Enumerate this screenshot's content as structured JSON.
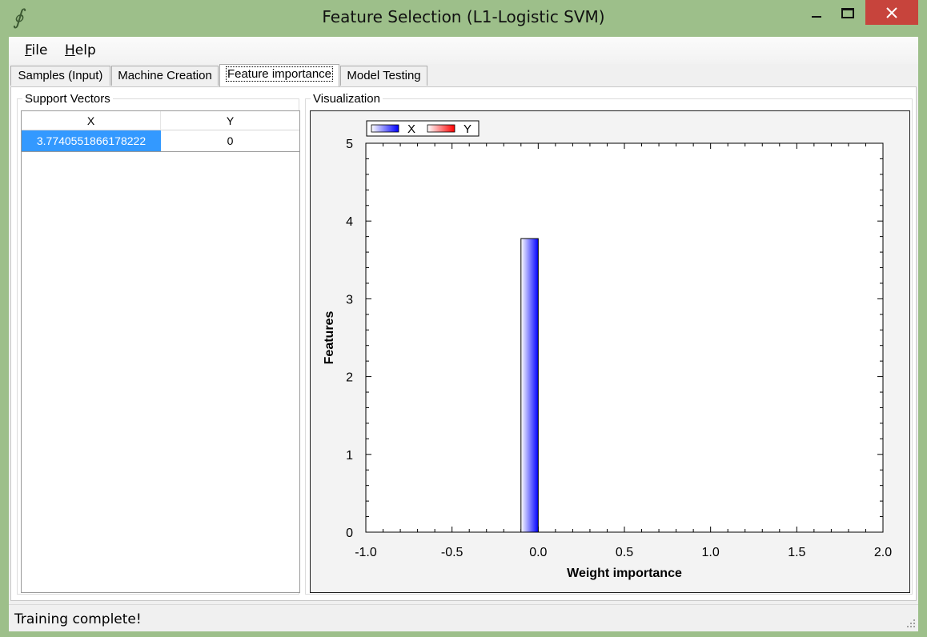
{
  "window": {
    "title": "Feature Selection (L1-Logistic SVM)",
    "app_icon": "∮",
    "controls": [
      "minimize-icon",
      "maximize-icon",
      "close-icon"
    ]
  },
  "menu": {
    "file": {
      "accel": "F",
      "rest": "ile"
    },
    "help": {
      "accel": "H",
      "rest": "elp"
    }
  },
  "tabs": [
    {
      "label": "Samples (Input)",
      "active": false
    },
    {
      "label": "Machine Creation",
      "active": false
    },
    {
      "label": "Feature importance",
      "active": true
    },
    {
      "label": "Model Testing",
      "active": false
    }
  ],
  "support_vectors": {
    "legend": "Support Vectors",
    "columns": [
      "X",
      "Y"
    ],
    "rows": [
      {
        "x": "3.7740551866178222",
        "y": "0"
      }
    ]
  },
  "visualization": {
    "legend": "Visualization"
  },
  "chart_data": {
    "type": "bar",
    "orientation": "vertical",
    "xlabel": "Weight importance",
    "ylabel": "Features",
    "xlim": [
      -1.0,
      2.0
    ],
    "ylim": [
      0,
      5
    ],
    "x_ticks": [
      "-1.0",
      "-0.5",
      "0.0",
      "0.5",
      "1.0",
      "1.5",
      "2.0"
    ],
    "y_ticks": [
      "0",
      "1",
      "2",
      "3",
      "4",
      "5"
    ],
    "legend_placement": "top-left",
    "grid": false,
    "series": [
      {
        "name": "X",
        "color": "#0000ff",
        "bars": [
          {
            "x": -0.05,
            "value": 3.7740551866178222
          }
        ]
      },
      {
        "name": "Y",
        "color": "#ff0000",
        "bars": []
      }
    ]
  },
  "status": {
    "text": "Training complete!"
  }
}
